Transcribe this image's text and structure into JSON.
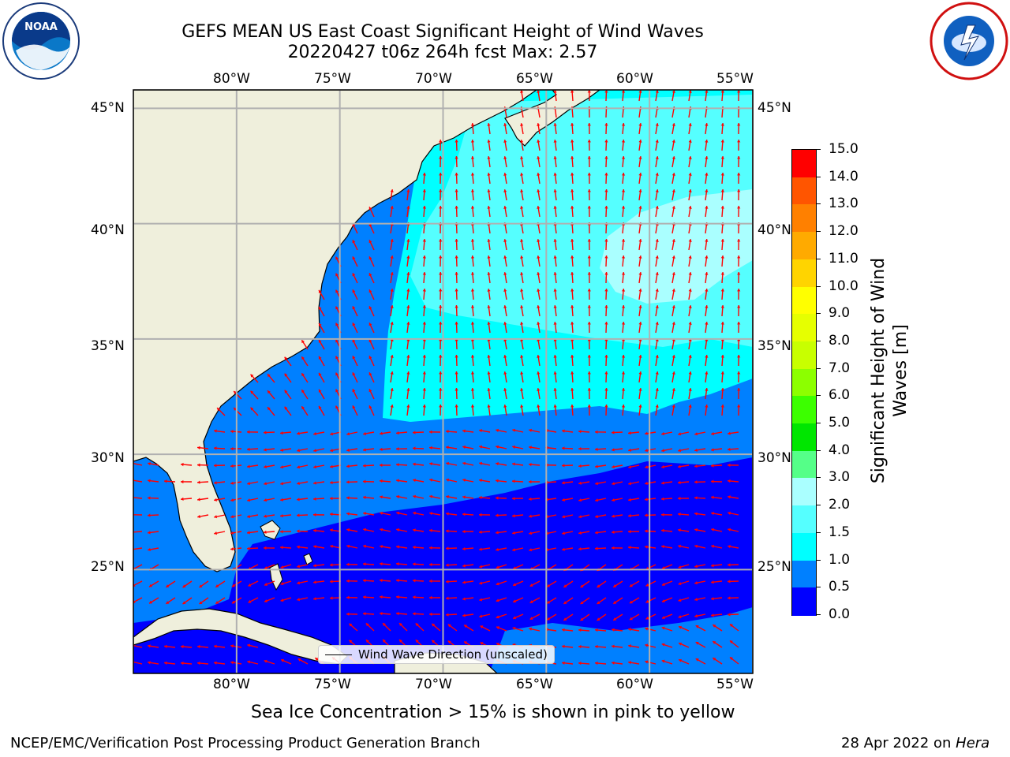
{
  "title": {
    "line1": "GEFS MEAN US East Coast Significant Height of Wind Waves",
    "line2": "20220427 t06z 264h fcst   Max: 2.57"
  },
  "logos": {
    "left": "NOAA",
    "right": "NATIONAL WEATHER SERVICE"
  },
  "map": {
    "lon_labels": [
      "80°W",
      "75°W",
      "70°W",
      "65°W",
      "60°W",
      "55°W"
    ],
    "lat_labels": [
      "45°N",
      "40°N",
      "35°N",
      "30°N",
      "25°N"
    ],
    "lon_range": [
      -85,
      -55
    ],
    "lat_range": [
      20.5,
      45.8
    ],
    "gridlines": true,
    "fill_levels_m": [
      0.5,
      1.0,
      1.5,
      2.0
    ],
    "legend_label": "Wind Wave Direction (unscaled)",
    "legend_position": "bottom-center",
    "arrow_color": "#ff0000"
  },
  "colorbar": {
    "title_line1": "Significant Height of Wind",
    "title_line2": "Waves [m]",
    "ticks": [
      "15.0",
      "14.0",
      "13.0",
      "12.0",
      "11.0",
      "10.0",
      "9.0",
      "8.0",
      "7.0",
      "6.0",
      "5.0",
      "4.0",
      "3.0",
      "2.0",
      "1.5",
      "1.0",
      "0.5",
      "0.0"
    ],
    "colors_top_to_bottom": [
      "#ff0000",
      "#ff2a00",
      "#ff5500",
      "#ff8000",
      "#ffaa00",
      "#ffd400",
      "#ffff00",
      "#e6ff00",
      "#c8ff00",
      "#8cff00",
      "#3cff00",
      "#00e600",
      "#55ff88",
      "#aaffff",
      "#55ffff",
      "#00ffff",
      "#0080ff",
      "#0000ff"
    ]
  },
  "note": "Sea Ice Concentration > 15% is shown in pink to yellow",
  "footer": {
    "left": "NCEP/EMC/Verification Post Processing Product Generation Branch",
    "right_prefix": "28 Apr 2022 on ",
    "right_machine": "Hera"
  }
}
